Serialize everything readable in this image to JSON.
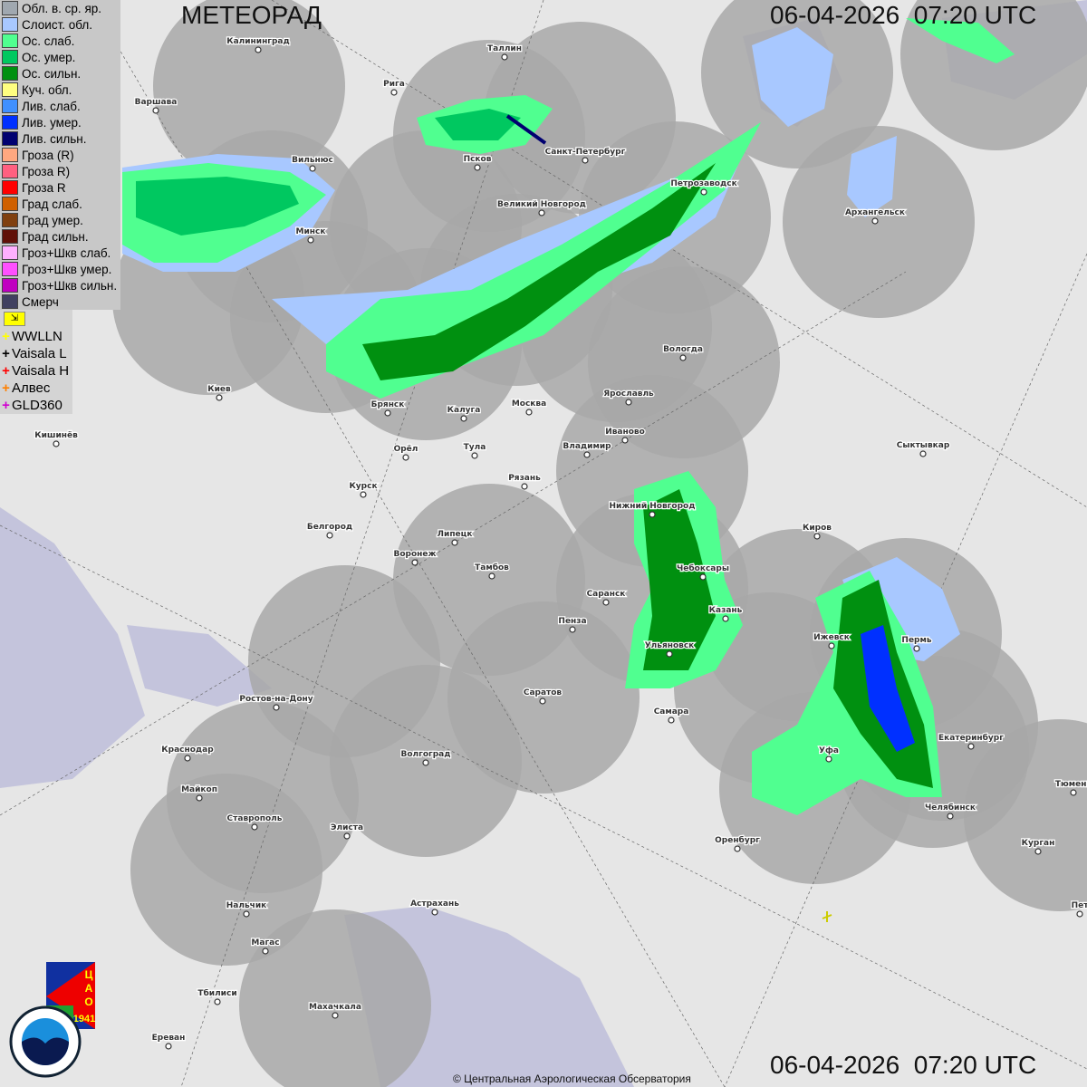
{
  "header": {
    "title": "МЕТЕОРАД",
    "timestamp_top": "06-04-2026  07:20 UTC",
    "timestamp_bottom": "06-04-2026  07:20 UTC"
  },
  "legend": {
    "items": [
      {
        "label": "Обл. в. ср. яр.",
        "color": "#a0a8b0"
      },
      {
        "label": "Слоист. обл.",
        "color": "#a8c8ff"
      },
      {
        "label": "Ос. слаб.",
        "color": "#50ff90"
      },
      {
        "label": "Ос. умер.",
        "color": "#00c860"
      },
      {
        "label": "Ос. сильн.",
        "color": "#009010"
      },
      {
        "label": "Куч. обл.",
        "color": "#ffff80"
      },
      {
        "label": "Лив. слаб.",
        "color": "#4090ff"
      },
      {
        "label": "Лив. умер.",
        "color": "#0030ff"
      },
      {
        "label": "Лив. сильн.",
        "color": "#000070"
      },
      {
        "label": "Гроза (R)",
        "color": "#ffa880"
      },
      {
        "label": "Гроза R)",
        "color": "#ff6080"
      },
      {
        "label": "Гроза R",
        "color": "#ff0000"
      },
      {
        "label": "Град слаб.",
        "color": "#d06000"
      },
      {
        "label": "Град умер.",
        "color": "#804010"
      },
      {
        "label": "Град сильн.",
        "color": "#601008"
      },
      {
        "label": "Гроз+Шкв слаб.",
        "color": "#ffb0ff"
      },
      {
        "label": "Гроз+Шкв умер.",
        "color": "#ff50ff"
      },
      {
        "label": "Гроз+Шкв сильн.",
        "color": "#c000c0"
      },
      {
        "label": "Смерч",
        "color": "#404060"
      }
    ],
    "lightning_flag_icon": "lightning-flag-icon",
    "lightning": [
      {
        "label": "WWLLN",
        "color": "#ffff00"
      },
      {
        "label": "Vaisala L",
        "color": "#000000"
      },
      {
        "label": "Vaisala H",
        "color": "#ff0000"
      },
      {
        "label": "Алвес",
        "color": "#ff8000"
      },
      {
        "label": "GLD360",
        "color": "#d000d0"
      }
    ]
  },
  "cities": [
    "Калининград",
    "Таллин",
    "Рига",
    "Варшава",
    "Вильнюс",
    "Псков",
    "Санкт-Петербург",
    "Петрозаводск",
    "Архангельск",
    "Великий Новгород",
    "Минск",
    "Вологда",
    "Киев",
    "Брянск",
    "Калуга",
    "Москва",
    "Ярославль",
    "Иваново",
    "Владимир",
    "Сыктывкар",
    "Кишинёв",
    "Орёл",
    "Тула",
    "Рязань",
    "Курск",
    "Нижний Новгород",
    "Киров",
    "Белгород",
    "Липецк",
    "Воронеж",
    "Тамбов",
    "Чебоксары",
    "Саранск",
    "Казань",
    "Пенза",
    "Ижевск",
    "Пермь",
    "Ульяновск",
    "Ростов-на-Дону",
    "Саратов",
    "Самара",
    "Екатеринбург",
    "Краснодар",
    "Волгоград",
    "Уфа",
    "Майкоп",
    "Тюмень",
    "Челябинск",
    "Ставрополь",
    "Элиста",
    "Оренбург",
    "Курган",
    "Нальчик",
    "Астрахань",
    "Пет",
    "Магас",
    "Тбилиси",
    "Махачкала",
    "Ереван"
  ],
  "logos": {
    "tsao": "ЦАО 1941",
    "roshydromet": "РОСГИДРОМЕТ ROSHYDROMET"
  },
  "credit": "© Центральная Аэрологическая Обсерватория",
  "colors": {
    "background": "#e6e6e6",
    "radar_coverage": "#a8a8a8",
    "water": "#c4c4dc"
  }
}
